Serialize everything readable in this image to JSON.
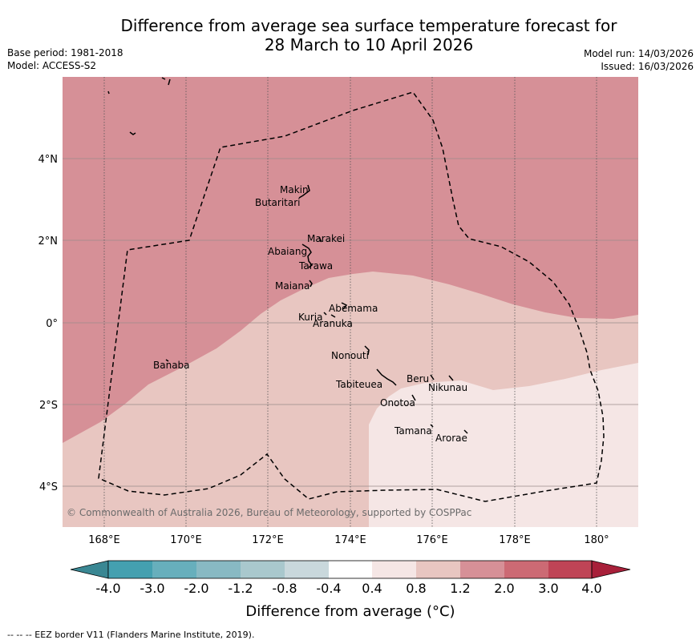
{
  "title_line1": "Difference from average sea surface temperature forecast for",
  "title_line2": "28 March to 10 April 2026",
  "base_period": "Base period: 1981-2018",
  "model": "Model: ACCESS-S2",
  "model_run": "Model run: 14/03/2026",
  "issued": "Issued: 16/03/2026",
  "copyright": "© Commonwealth of Australia 2026, Bureau of Meteorology, supported by COSPPac",
  "lon_ticks": [
    "168°E",
    "170°E",
    "172°E",
    "174°E",
    "176°E",
    "178°E",
    "180°"
  ],
  "lat_ticks": [
    "4°N",
    "2°N",
    "0°",
    "2°S",
    "4°S"
  ],
  "islands": {
    "makin": "Makin",
    "butaritari": "Butaritari",
    "marakei": "Marakei",
    "abaiang": "Abaiang",
    "tarawa": "Tarawa",
    "maiana": "Maiana",
    "abemama": "Abemama",
    "kuria": "Kuria",
    "aranuka": "Aranuka",
    "nonouti": "Nonouti",
    "banaba": "Banaba",
    "beru": "Beru",
    "tabiteuea": "Tabiteuea",
    "nikunau": "Nikunau",
    "onotoa": "Onotoa",
    "tamana": "Tamana",
    "arorae": "Arorae"
  },
  "colorbar": {
    "labels": [
      "-4.0",
      "-3.0",
      "-2.0",
      "-1.2",
      "-0.8",
      "-0.4",
      "0.4",
      "0.8",
      "1.2",
      "2.0",
      "3.0",
      "4.0"
    ],
    "colors": [
      "#44a0b0",
      "#67afbc",
      "#88b9c3",
      "#a9c8cd",
      "#c9d8dc",
      "#ffffff",
      "#f5e6e5",
      "#e8c6c1",
      "#d69097",
      "#cc6a74",
      "#bf4456"
    ],
    "under_color": "#3a8793",
    "over_color": "#a8203a",
    "title": "Difference from average (°C)"
  },
  "legend_footer": "--  --  -- EEZ border V11 (Flanders Marine Institute, 2019).",
  "map_colors": {
    "band_1p2_2p0": "#d69097",
    "band_0p8_1p2": "#e8c6c1",
    "band_0p4_0p8": "#f5e6e5"
  }
}
